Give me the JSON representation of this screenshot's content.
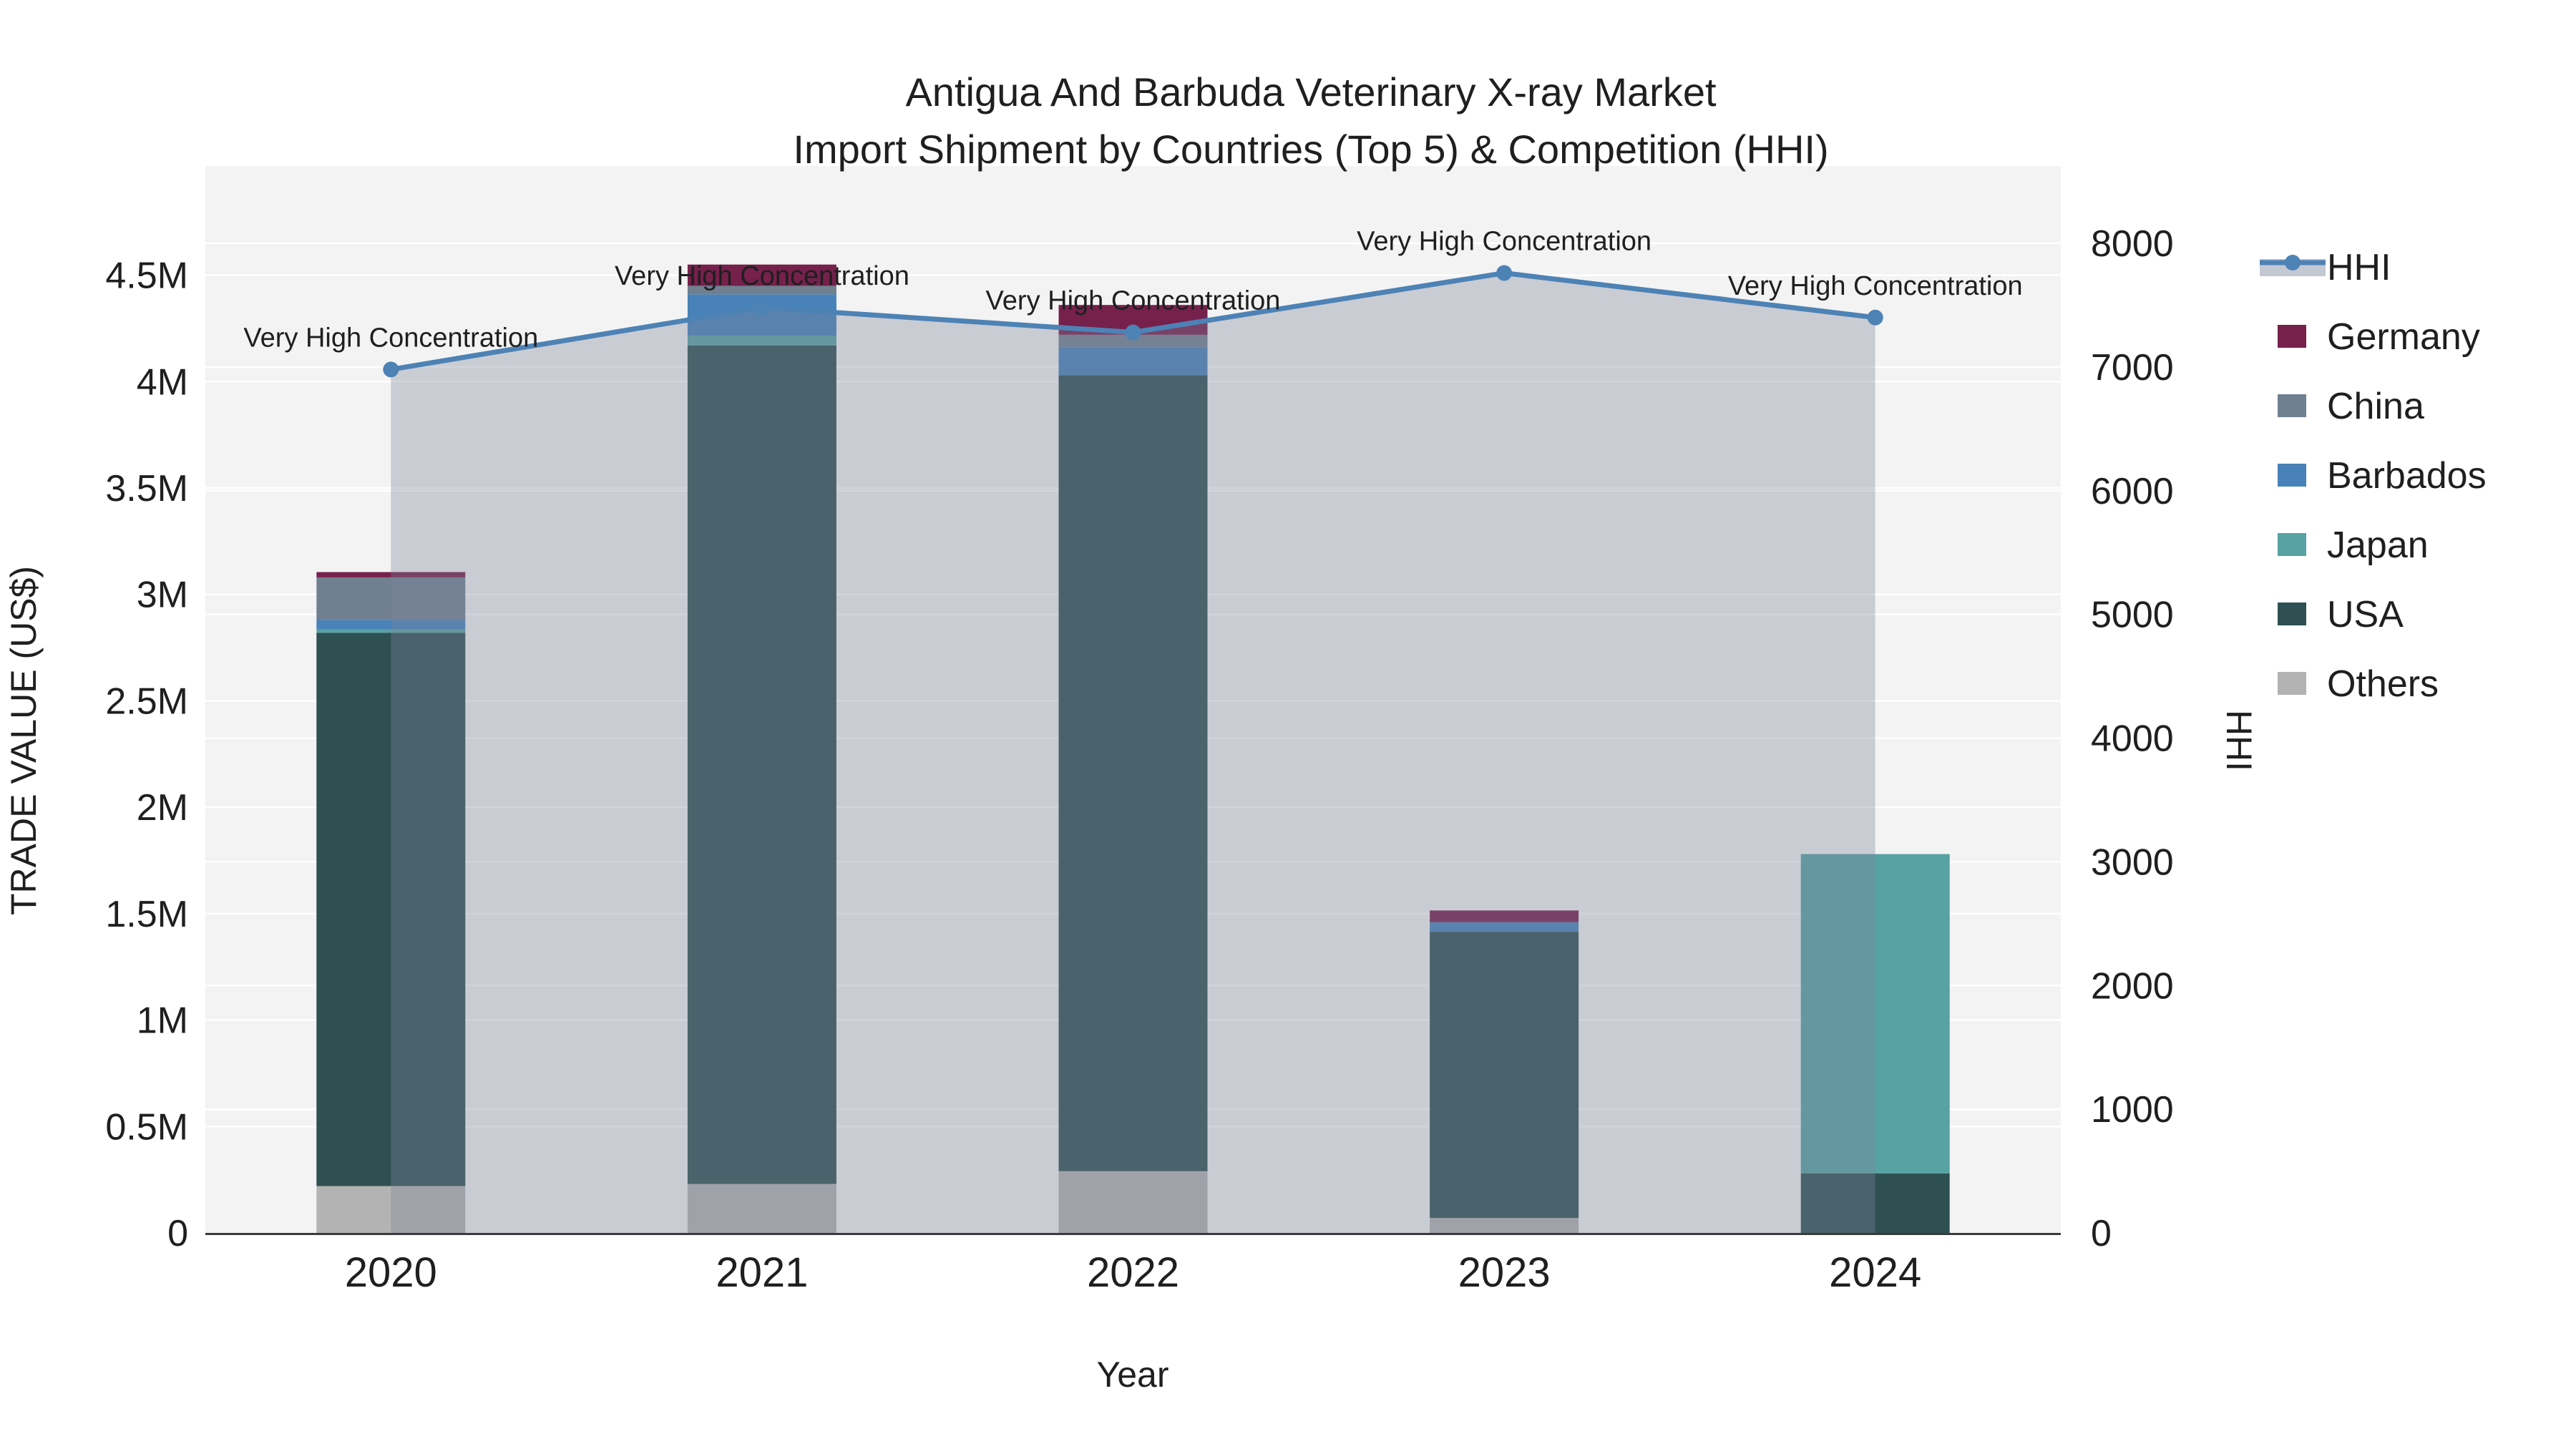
{
  "title": {
    "line1": "Antigua And Barbuda Veterinary X-ray Market",
    "line2": "Import Shipment by Countries (Top 5) & Competition (HHI)"
  },
  "axes": {
    "left_title": "TRADE VALUE (US$)",
    "x_title": "Year",
    "right_title": "HHI",
    "left_tick_labels": [
      "0",
      "0.5M",
      "1M",
      "1.5M",
      "2M",
      "2.5M",
      "3M",
      "3.5M",
      "4M",
      "4.5M"
    ],
    "left_tick_values_musd": [
      0,
      0.5,
      1,
      1.5,
      2,
      2.5,
      3,
      3.5,
      4,
      4.5
    ],
    "right_tick_labels": [
      "0",
      "1000",
      "2000",
      "3000",
      "4000",
      "5000",
      "6000",
      "7000",
      "8000"
    ],
    "right_tick_values": [
      0,
      1000,
      2000,
      3000,
      4000,
      5000,
      6000,
      7000,
      8000
    ]
  },
  "legend": {
    "items": [
      {
        "label": "HHI",
        "type": "line",
        "color": "#4d82b5"
      },
      {
        "label": "Germany",
        "type": "swatch",
        "color": "#76204c"
      },
      {
        "label": "China",
        "type": "swatch",
        "color": "#708091"
      },
      {
        "label": "Barbados",
        "type": "swatch",
        "color": "#4882b8"
      },
      {
        "label": "Japan",
        "type": "swatch",
        "color": "#57a2a2"
      },
      {
        "label": "USA",
        "type": "swatch",
        "color": "#2f5052"
      },
      {
        "label": "Others",
        "type": "swatch",
        "color": "#b3b3b3"
      }
    ]
  },
  "colors": {
    "plot_bg": "#f3f3f3",
    "grid": "#ffffff",
    "axis_line": "#3b3b3b",
    "text": "#1f1f1f",
    "hhi_line": "#4d82b5",
    "area_overlay": "rgba(125,133,155,0.35)"
  },
  "chart_data": {
    "type": "bar+line",
    "title": "Antigua And Barbuda Veterinary X-ray Market — Import Shipment by Countries (Top 5) & Competition (HHI)",
    "categories": [
      "2020",
      "2021",
      "2022",
      "2023",
      "2024"
    ],
    "stack_order_bottom_to_top": [
      "Others",
      "USA",
      "Japan",
      "Barbados",
      "China",
      "Germany"
    ],
    "series": [
      {
        "name": "Others",
        "color": "#b3b3b3",
        "values_usd": [
          220000,
          230000,
          290000,
          70000,
          0
        ]
      },
      {
        "name": "USA",
        "color": "#2f5052",
        "values_usd": [
          2600000,
          3940000,
          3740000,
          1345000,
          280000
        ]
      },
      {
        "name": "Japan",
        "color": "#57a2a2",
        "values_usd": [
          15000,
          45000,
          0,
          0,
          1500000
        ]
      },
      {
        "name": "Barbados",
        "color": "#4882b8",
        "values_usd": [
          45000,
          195000,
          130000,
          45000,
          0
        ]
      },
      {
        "name": "China",
        "color": "#708091",
        "values_usd": [
          200000,
          40000,
          60000,
          0,
          0
        ]
      },
      {
        "name": "Germany",
        "color": "#76204c",
        "values_usd": [
          25000,
          100000,
          140000,
          55000,
          0
        ]
      }
    ],
    "bar_totals_usd": [
      3105000,
      4550000,
      4360000,
      1515000,
      1780000
    ],
    "hhi_series": {
      "name": "HHI",
      "color": "#4d82b5",
      "values": [
        6980,
        7480,
        7280,
        7760,
        7400
      ]
    },
    "annotations": [
      "Very High Concentration",
      "Very High Concentration",
      "Very High Concentration",
      "Very High Concentration",
      "Very High Concentration"
    ],
    "left_axis": {
      "label": "TRADE VALUE (US$)",
      "range_usd": [
        0,
        5013000
      ],
      "grid": true
    },
    "right_axis": {
      "label": "HHI",
      "range": [
        0,
        8625
      ],
      "grid": true
    },
    "x_label": "Year",
    "legend_position": "right-top"
  }
}
